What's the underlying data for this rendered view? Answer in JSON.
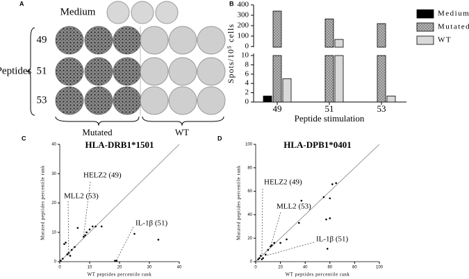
{
  "panel_a": {
    "label": "A",
    "medium": "Medium",
    "rows": [
      "49",
      "51",
      "53"
    ],
    "peptides": "Peptides",
    "groups": [
      "Mutated",
      "WT"
    ]
  },
  "chart_data": [
    {
      "type": "bar",
      "panel_label": "B",
      "xlabel": "Peptide stimulation",
      "ylabel": "Spots/10⁵ cells",
      "categories": [
        "49",
        "51",
        "53"
      ],
      "series": [
        {
          "name": "Medium",
          "color": "#000000",
          "values": [
            1.3,
            0,
            0
          ]
        },
        {
          "name": "Mutated",
          "color": "#9a9a9a",
          "values": [
            340,
            265,
            220
          ]
        },
        {
          "name": "WT",
          "color": "#d9d9d9",
          "values": [
            5,
            68,
            1.3
          ]
        }
      ],
      "ylim_lower": [
        0,
        10
      ],
      "yticks_lower": [
        0,
        2,
        4,
        6,
        8,
        10
      ],
      "ylim_upper": [
        0,
        400
      ],
      "yticks_upper": [
        0,
        100,
        200,
        300,
        400
      ],
      "legend": "right"
    },
    {
      "type": "scatter",
      "panel_label": "C",
      "title": "HLA-DRB1*1501",
      "xlabel": "WT peptides percentile rank",
      "ylabel": "Mutated peptides percentile rank",
      "xlim": [
        0,
        40
      ],
      "ylim": [
        0,
        40
      ],
      "xticks": [
        0,
        10,
        20,
        30,
        40
      ],
      "yticks": [
        0,
        10,
        20,
        30,
        40
      ],
      "series": [
        {
          "color": "#000000",
          "x": [
            0.3,
            1,
            1.5,
            2,
            2.5,
            3,
            3.5,
            4,
            5,
            6,
            8,
            8.5,
            9,
            10,
            11,
            12,
            14,
            18.5,
            19,
            25,
            33
          ],
          "values": [
            0.3,
            1,
            6,
            6.5,
            2.5,
            3,
            2,
            4,
            5,
            11.5,
            8.5,
            9,
            10,
            11,
            12,
            12,
            12,
            0.3,
            0.3,
            9.5,
            7.5
          ]
        }
      ],
      "annotations": [
        "HELZ2 (49)",
        "MLL2 (53)",
        "IL-1β (51)"
      ]
    },
    {
      "type": "scatter",
      "panel_label": "D",
      "title": "HLA-DPB1*0401",
      "xlabel": "WT peptides percentile rank",
      "ylabel": "Mutated peptides percentile rank",
      "xlim": [
        0,
        100
      ],
      "ylim": [
        0,
        100
      ],
      "xticks": [
        0,
        20,
        40,
        60,
        80,
        100
      ],
      "yticks": [
        0,
        20,
        40,
        60,
        80,
        100
      ],
      "series": [
        {
          "color": "#000000",
          "x": [
            2,
            3,
            4,
            5,
            6,
            8,
            10,
            12,
            13,
            15,
            20,
            25,
            35,
            37,
            55,
            57,
            58,
            60,
            62,
            65,
            60
          ],
          "values": [
            2,
            3,
            5,
            2,
            3,
            6,
            10,
            13,
            14,
            16,
            16,
            19,
            33,
            52,
            55,
            36,
            11,
            54,
            66,
            67,
            37
          ]
        }
      ],
      "annotations": [
        "HELZ2 (49)",
        "MLL2 (53)",
        "IL-1β (51)"
      ]
    }
  ]
}
